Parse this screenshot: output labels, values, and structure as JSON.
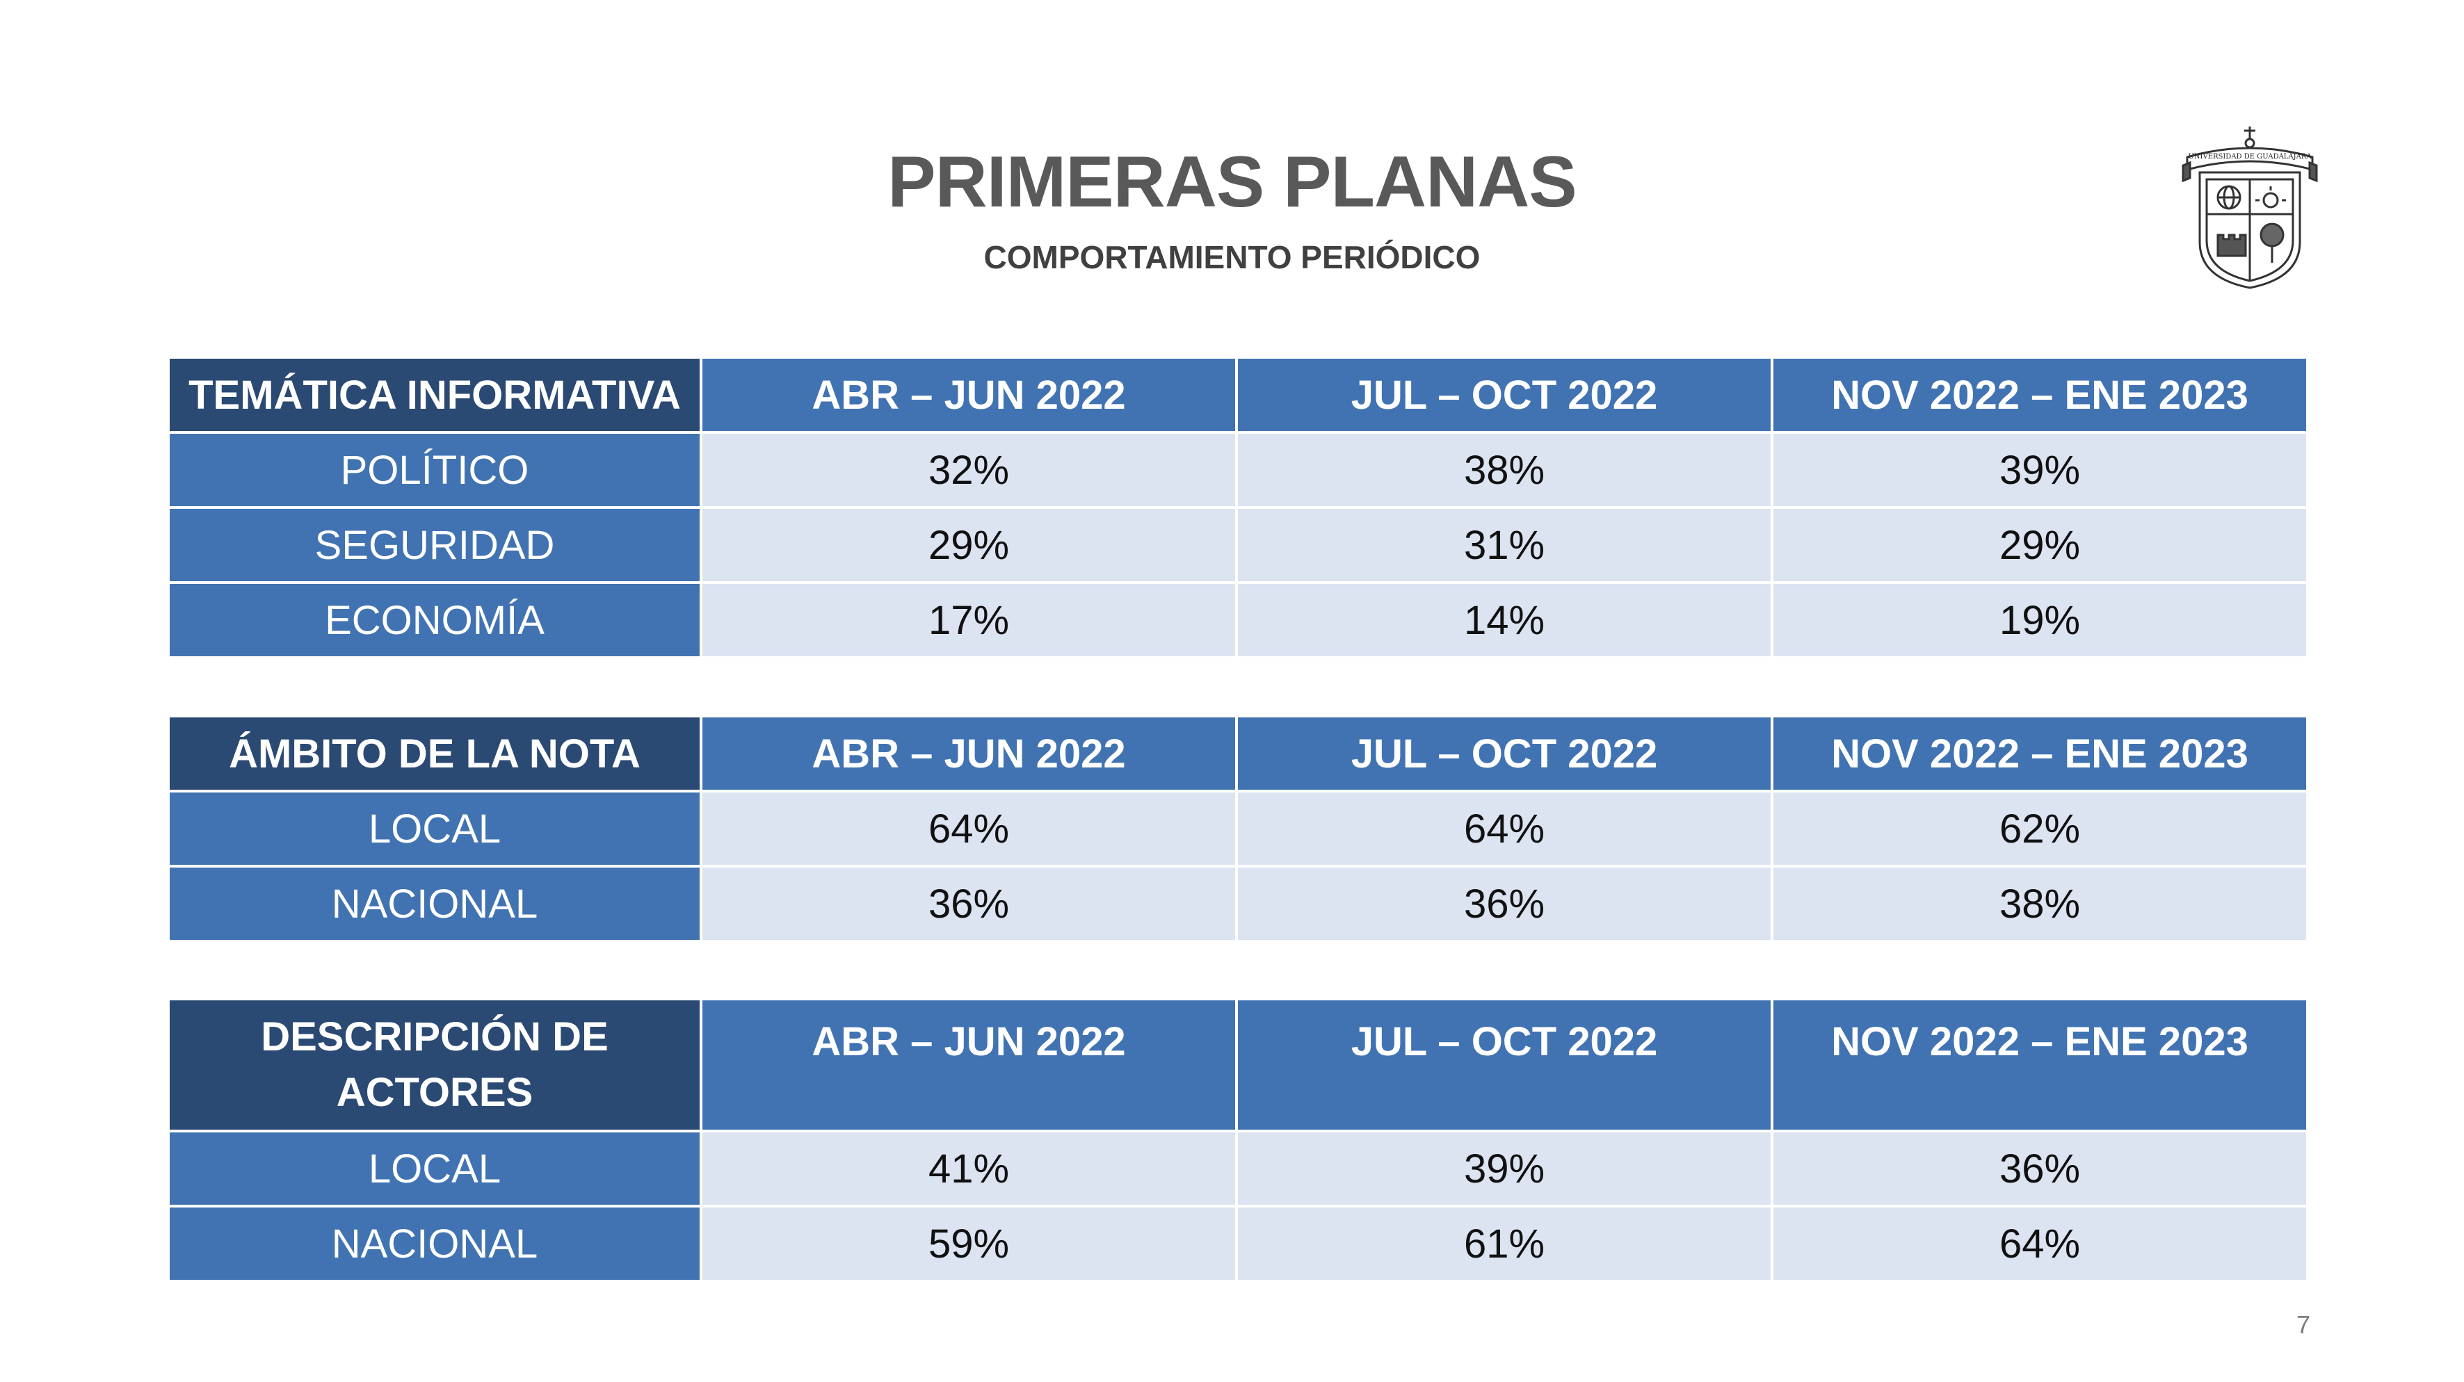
{
  "title": "PRIMERAS PLANAS",
  "subtitle": "COMPORTAMIENTO PERIÓDICO",
  "page_number": "7",
  "logo": {
    "icon": "universidad-de-guadalajara-seal-icon",
    "text": "UNIVERSIDAD DE GUADALAJARA"
  },
  "colors": {
    "header_dark": "#2b4a73",
    "header_blue": "#4173b2",
    "cell_bg": "#dce3f1",
    "title": "#595959"
  },
  "tables": [
    {
      "headers": [
        "TEMÁTICA INFORMATIVA",
        "ABR – JUN 2022",
        "JUL – OCT 2022",
        "NOV 2022 – ENE 2023"
      ],
      "rows": [
        [
          "POLÍTICO",
          "32%",
          "38%",
          "39%"
        ],
        [
          "SEGURIDAD",
          "29%",
          "31%",
          "29%"
        ],
        [
          "ECONOMÍA",
          "17%",
          "14%",
          "19%"
        ]
      ]
    },
    {
      "headers": [
        "ÁMBITO DE LA NOTA",
        "ABR – JUN 2022",
        "JUL – OCT 2022",
        "NOV 2022 – ENE 2023"
      ],
      "rows": [
        [
          "LOCAL",
          "64%",
          "64%",
          "62%"
        ],
        [
          "NACIONAL",
          "36%",
          "36%",
          "38%"
        ]
      ]
    },
    {
      "headers": [
        "DESCRIPCIÓN DE ACTORES",
        "ABR – JUN 2022",
        "JUL – OCT 2022",
        "NOV 2022 – ENE 2023"
      ],
      "rows": [
        [
          "LOCAL",
          "41%",
          "39%",
          "36%"
        ],
        [
          "NACIONAL",
          "59%",
          "61%",
          "64%"
        ]
      ]
    }
  ]
}
